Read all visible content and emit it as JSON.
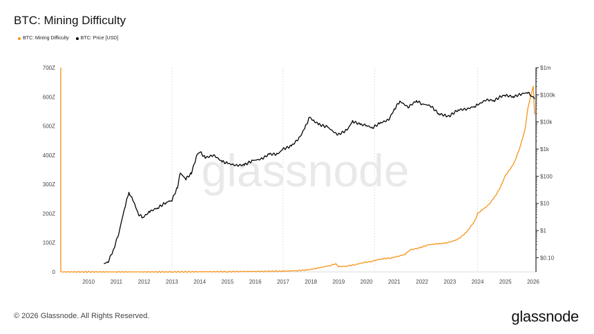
{
  "page": {
    "title": "BTC: Mining Difficulty",
    "copyright": "© 2026 Glassnode. All Rights Reserved.",
    "logo": "glassnode",
    "watermark": "glassnode"
  },
  "colors": {
    "difficulty": "#f7931a",
    "price": "#000000",
    "grid": "#d9d9d9",
    "axis": "#222222"
  },
  "chart_data": {
    "type": "line",
    "title": "BTC: Mining Difficulty",
    "legend": [
      "BTC: Mining Difficulty",
      "BTC: Price [USD]"
    ],
    "xlabel": "",
    "ylabel_left": "",
    "ylabel_right": "",
    "x_range": [
      2009.0,
      2026.1
    ],
    "x_ticks": [
      "2010",
      "2011",
      "2012",
      "2013",
      "2014",
      "2015",
      "2016",
      "2017",
      "2018",
      "2019",
      "2020",
      "2021",
      "2022",
      "2023",
      "2024",
      "2025",
      "2026"
    ],
    "x_tick_values": [
      2010,
      2011,
      2012,
      2013,
      2014,
      2015,
      2016,
      2017,
      2018,
      2019,
      2020,
      2021,
      2022,
      2023,
      2024,
      2025,
      2026
    ],
    "y_left": {
      "ylim": [
        0,
        700
      ],
      "ticks": [
        0,
        100,
        200,
        300,
        400,
        500,
        600,
        700
      ],
      "tick_labels": [
        "0",
        "100Z",
        "200Z",
        "300Z",
        "400Z",
        "500Z",
        "600Z",
        "700Z"
      ]
    },
    "y_right": {
      "scale": "log",
      "ylim": [
        0.03,
        1000000
      ],
      "ticks": [
        0.1,
        1,
        10,
        100,
        1000,
        10000,
        100000,
        1000000
      ],
      "tick_labels": [
        "$0.10",
        "$1",
        "$10",
        "$100",
        "$1k",
        "$10k",
        "$100k",
        "$1m"
      ]
    },
    "series": [
      {
        "name": "BTC: Mining Difficulty",
        "axis": "left",
        "x": [
          2009.0,
          2011.0,
          2013.0,
          2014.0,
          2015.0,
          2016.0,
          2017.0,
          2017.5,
          2017.9,
          2018.3,
          2018.7,
          2018.9,
          2019.0,
          2019.3,
          2019.6,
          2019.9,
          2020.2,
          2020.4,
          2020.6,
          2020.9,
          2021.2,
          2021.4,
          2021.5,
          2021.6,
          2021.9,
          2022.2,
          2022.5,
          2022.8,
          2023.0,
          2023.3,
          2023.6,
          2023.9,
          2024.0,
          2024.2,
          2024.4,
          2024.6,
          2024.8,
          2025.0,
          2025.3,
          2025.5,
          2025.7,
          2025.8,
          2025.9,
          2026.0,
          2026.05
        ],
        "values": [
          0,
          0,
          0,
          0.5,
          0.8,
          1.5,
          2.5,
          4,
          7,
          14,
          22,
          28,
          18,
          20,
          25,
          32,
          36,
          42,
          45,
          48,
          55,
          60,
          70,
          76,
          82,
          92,
          96,
          98,
          102,
          112,
          136,
          175,
          200,
          215,
          230,
          255,
          286,
          330,
          370,
          420,
          485,
          555,
          600,
          635,
          540
        ]
      },
      {
        "name": "BTC: Price [USD]",
        "axis": "right",
        "x": [
          2010.55,
          2010.7,
          2010.9,
          2011.1,
          2011.3,
          2011.45,
          2011.6,
          2011.8,
          2011.95,
          2012.2,
          2012.5,
          2012.8,
          2013.0,
          2013.2,
          2013.3,
          2013.5,
          2013.7,
          2013.9,
          2014.0,
          2014.2,
          2014.5,
          2014.8,
          2015.0,
          2015.3,
          2015.6,
          2015.9,
          2016.2,
          2016.5,
          2016.8,
          2017.0,
          2017.3,
          2017.6,
          2017.8,
          2017.95,
          2018.1,
          2018.3,
          2018.6,
          2018.9,
          2019.0,
          2019.3,
          2019.5,
          2019.8,
          2020.0,
          2020.2,
          2020.5,
          2020.8,
          2021.0,
          2021.2,
          2021.5,
          2021.8,
          2022.0,
          2022.3,
          2022.6,
          2022.9,
          2023.0,
          2023.3,
          2023.6,
          2023.9,
          2024.0,
          2024.3,
          2024.6,
          2024.9,
          2025.0,
          2025.3,
          2025.6,
          2025.8,
          2025.95,
          2026.05
        ],
        "values": [
          0.06,
          0.07,
          0.2,
          0.9,
          7,
          25,
          13,
          4,
          3,
          5,
          7,
          11,
          13,
          40,
          130,
          80,
          130,
          600,
          800,
          480,
          600,
          350,
          300,
          250,
          260,
          380,
          420,
          650,
          650,
          1000,
          1300,
          2700,
          6500,
          15000,
          11000,
          8000,
          6500,
          3700,
          3500,
          5000,
          10500,
          8000,
          7500,
          6000,
          9200,
          12000,
          29000,
          58000,
          35000,
          60000,
          46000,
          40000,
          20000,
          16500,
          17000,
          28000,
          29500,
          38000,
          42000,
          65000,
          62000,
          95000,
          94000,
          85000,
          110000,
          120000,
          92000,
          70000
        ]
      }
    ]
  }
}
